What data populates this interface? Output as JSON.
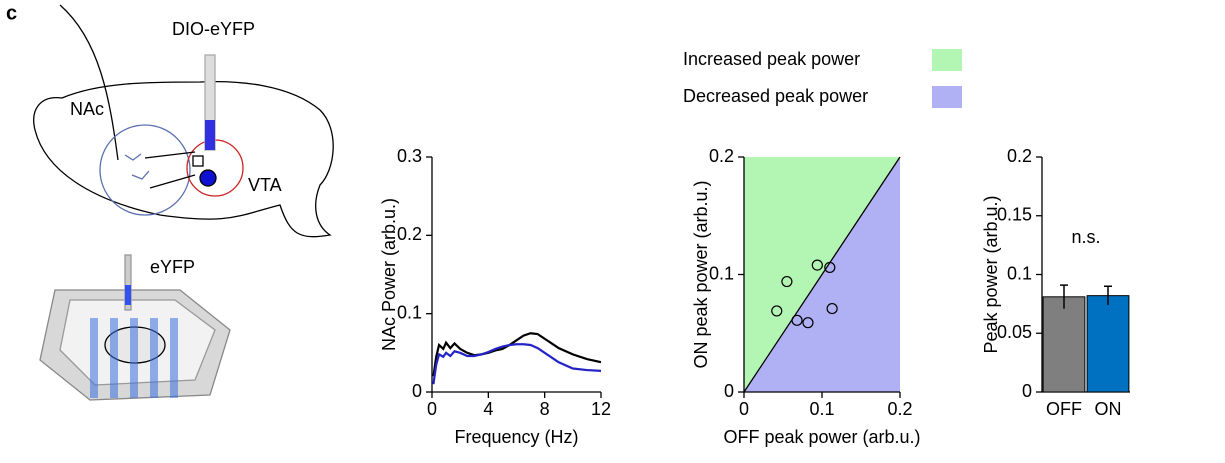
{
  "panel_label": "c",
  "schematic": {
    "probe_label": "DIO-eYFP",
    "region_labels": [
      "NAc",
      "VTA"
    ],
    "control_label": "eYFP"
  },
  "chart_data": [
    {
      "type": "line",
      "xlabel": "Frequency (Hz)",
      "ylabel": "NAc Power (arb.u.)",
      "x": [
        0.1,
        0.3,
        0.5,
        0.8,
        1,
        1.3,
        1.6,
        2,
        2.5,
        3,
        3.5,
        4,
        4.5,
        5,
        5.5,
        6,
        6.5,
        7,
        7.5,
        8,
        8.5,
        9,
        10,
        11,
        12
      ],
      "series": [
        {
          "color": "#000000",
          "values": [
            0.02,
            0.045,
            0.06,
            0.055,
            0.063,
            0.056,
            0.062,
            0.055,
            0.05,
            0.047,
            0.048,
            0.05,
            0.053,
            0.055,
            0.06,
            0.066,
            0.072,
            0.075,
            0.074,
            0.068,
            0.062,
            0.056,
            0.048,
            0.042,
            0.038
          ]
        },
        {
          "color": "#2323c8",
          "values": [
            0.01,
            0.035,
            0.048,
            0.045,
            0.05,
            0.046,
            0.052,
            0.05,
            0.046,
            0.046,
            0.048,
            0.051,
            0.055,
            0.058,
            0.06,
            0.061,
            0.061,
            0.06,
            0.056,
            0.05,
            0.044,
            0.038,
            0.03,
            0.028,
            0.027
          ]
        }
      ],
      "xlim": [
        0,
        12
      ],
      "xticks": [
        0,
        4,
        8,
        12
      ],
      "ylim": [
        0,
        0.3
      ],
      "yticks": [
        0,
        0.1,
        0.2,
        0.3
      ]
    },
    {
      "type": "scatter",
      "xlabel": "OFF peak power (arb.u.)",
      "ylabel": "ON peak power (arb.u.)",
      "x": [
        0.042,
        0.055,
        0.068,
        0.082,
        0.094,
        0.11,
        0.113
      ],
      "values": [
        0.069,
        0.094,
        0.061,
        0.059,
        0.108,
        0.106,
        0.071
      ],
      "regions": [
        {
          "name": "Increased peak power",
          "color": "#b3f5b3"
        },
        {
          "name": "Decreased peak power",
          "color": "#b0b0f5"
        }
      ],
      "xlim": [
        0,
        0.2
      ],
      "xticks": [
        0,
        0.1,
        0.2
      ],
      "ylim": [
        0,
        0.2
      ],
      "yticks": [
        0,
        0.1,
        0.2
      ]
    },
    {
      "type": "bar",
      "ylabel": "Peak power (arb.u.)",
      "annotation": "n.s.",
      "categories": [
        "OFF",
        "ON"
      ],
      "values": [
        0.081,
        0.082
      ],
      "errors": [
        0.01,
        0.008
      ],
      "colors": [
        "#7f7f7f",
        "#0070c0"
      ],
      "ylim": [
        0,
        0.2
      ],
      "yticks": [
        0,
        0.05,
        0.1,
        0.15,
        0.2
      ]
    }
  ]
}
